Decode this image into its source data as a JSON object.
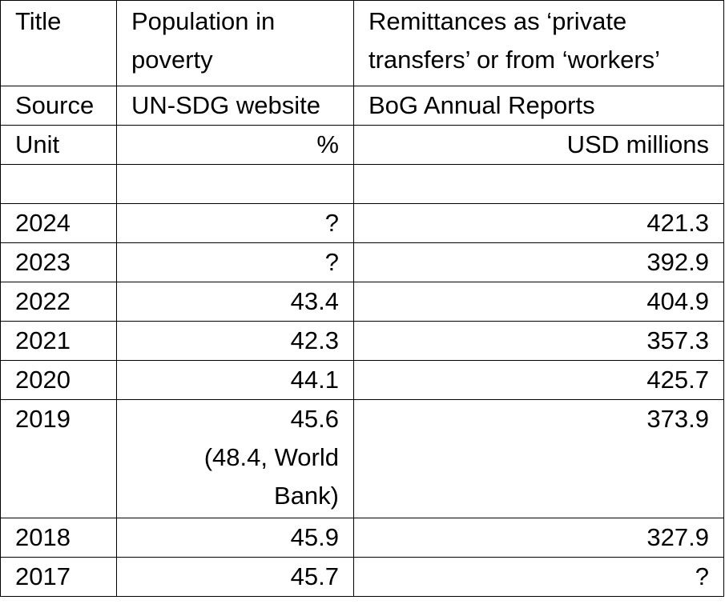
{
  "header": {
    "title": {
      "label": "Title",
      "poverty": "Population in poverty",
      "remittances": "Remittances as ‘private transfers’ or from ‘workers’"
    },
    "source": {
      "label": "Source",
      "poverty": "UN-SDG website",
      "remittances": "BoG Annual Reports"
    },
    "unit": {
      "label": "Unit",
      "poverty": "%",
      "remittances": "USD millions"
    }
  },
  "rows": [
    {
      "year": "2024",
      "poverty": "?",
      "remittances": "421.3"
    },
    {
      "year": "2023",
      "poverty": "?",
      "remittances": "392.9"
    },
    {
      "year": "2022",
      "poverty": "43.4",
      "remittances": "404.9"
    },
    {
      "year": "2021",
      "poverty": "42.3",
      "remittances": "357.3"
    },
    {
      "year": "2020",
      "poverty": "44.1",
      "remittances": "425.7"
    },
    {
      "year": "2019",
      "poverty": "45.6",
      "poverty_note": "(48.4, World Bank)",
      "remittances": "373.9"
    },
    {
      "year": "2018",
      "poverty": "45.9",
      "remittances": "327.9"
    },
    {
      "year": "2017",
      "poverty": "45.7",
      "remittances": "?"
    }
  ]
}
